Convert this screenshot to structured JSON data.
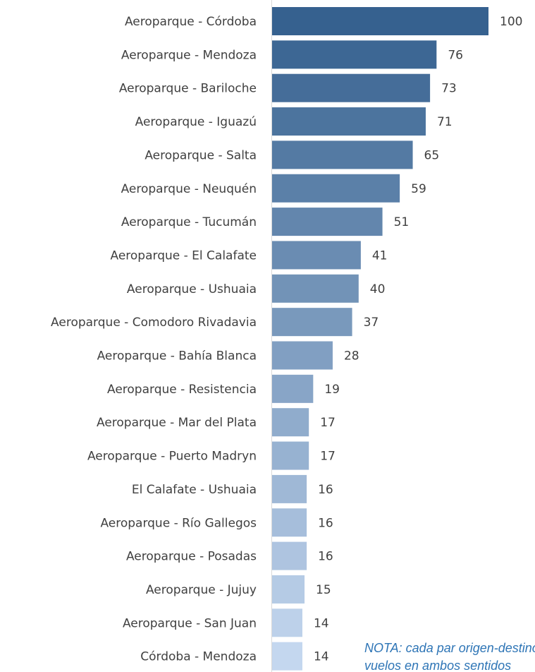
{
  "chart_data": {
    "type": "bar",
    "orientation": "horizontal",
    "categories": [
      "Aeroparque - Córdoba",
      "Aeroparque - Mendoza",
      "Aeroparque - Bariloche",
      "Aeroparque - Iguazú",
      "Aeroparque - Salta",
      "Aeroparque - Neuquén",
      "Aeroparque - Tucumán",
      "Aeroparque - El Calafate",
      "Aeroparque - Ushuaia",
      "Aeroparque - Comodoro Rivadavia",
      "Aeroparque - Bahía Blanca",
      "Aeroparque - Resistencia",
      "Aeroparque - Mar del Plata",
      "Aeroparque - Puerto Madryn",
      "El Calafate - Ushuaia",
      "Aeroparque - Río Gallegos",
      "Aeroparque - Posadas",
      "Aeroparque - Jujuy",
      "Aeroparque - San Juan",
      "Córdoba - Mendoza"
    ],
    "values": [
      100,
      76,
      73,
      71,
      65,
      59,
      51,
      41,
      40,
      37,
      28,
      19,
      17,
      17,
      16,
      16,
      16,
      15,
      14,
      14
    ],
    "data_labels": true,
    "xlim": [
      0,
      100
    ],
    "grid": false,
    "legend": "none",
    "colors": {
      "gradient_start": "#36618f",
      "gradient_end": "#c4d7ef",
      "axis": "#d9d9d9",
      "label": "#404040"
    },
    "annotation_lines": [
      "NOTA: cada par origen-destino incluye",
      "vuelos en ambos sentidos"
    ]
  }
}
